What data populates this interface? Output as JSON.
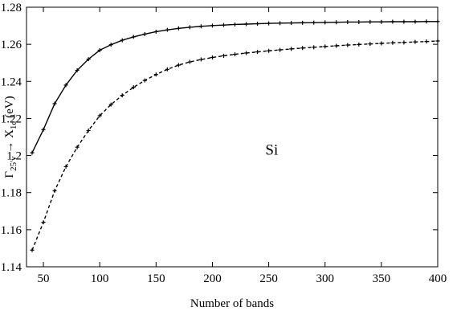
{
  "chart_data": {
    "type": "line",
    "xlabel": "Number of bands",
    "ylabel_main": "Γ",
    "ylabel_sub1": "25'v",
    "ylabel_arrow": " → X",
    "ylabel_sub2": "1c",
    "ylabel_unit": " (eV)",
    "annotation": "Si",
    "xlim": [
      35,
      400
    ],
    "ylim": [
      1.14,
      1.28
    ],
    "xticks": [
      50,
      100,
      150,
      200,
      250,
      300,
      350,
      400
    ],
    "yticks": [
      1.14,
      1.16,
      1.18,
      1.2,
      1.22,
      1.24,
      1.26,
      1.28
    ],
    "ytick_labels": [
      "1.14",
      "1.16",
      "1.18",
      "1.2",
      "1.22",
      "1.24",
      "1.26",
      "1.28"
    ],
    "grid": false,
    "series": [
      {
        "style": "solid",
        "x": [
          40,
          50,
          60,
          70,
          80,
          90,
          100,
          110,
          120,
          130,
          140,
          150,
          160,
          170,
          180,
          190,
          200,
          210,
          220,
          230,
          240,
          250,
          260,
          270,
          280,
          290,
          300,
          310,
          320,
          330,
          340,
          350,
          360,
          370,
          380,
          390,
          400
        ],
        "y": [
          1.2015,
          1.214,
          1.228,
          1.238,
          1.246,
          1.252,
          1.2568,
          1.2598,
          1.2622,
          1.264,
          1.2655,
          1.2668,
          1.2678,
          1.2686,
          1.2692,
          1.2697,
          1.2701,
          1.2704,
          1.2707,
          1.2709,
          1.2711,
          1.2713,
          1.2714,
          1.2715,
          1.2716,
          1.2717,
          1.2718,
          1.2719,
          1.272,
          1.272,
          1.2721,
          1.2721,
          1.2722,
          1.2722,
          1.2722,
          1.2723,
          1.2723
        ]
      },
      {
        "style": "dashed",
        "x": [
          40,
          50,
          60,
          70,
          80,
          90,
          100,
          110,
          120,
          130,
          140,
          150,
          160,
          170,
          180,
          190,
          200,
          210,
          220,
          230,
          240,
          250,
          260,
          270,
          280,
          290,
          300,
          310,
          320,
          330,
          340,
          350,
          360,
          370,
          380,
          390,
          400
        ],
        "y": [
          1.149,
          1.164,
          1.181,
          1.194,
          1.2045,
          1.2135,
          1.2215,
          1.2275,
          1.2325,
          1.2368,
          1.2405,
          1.2437,
          1.2465,
          1.2488,
          1.2505,
          1.2518,
          1.2529,
          1.2538,
          1.2546,
          1.2553,
          1.2559,
          1.2565,
          1.257,
          1.2575,
          1.258,
          1.2584,
          1.2588,
          1.2592,
          1.2596,
          1.2599,
          1.2602,
          1.2605,
          1.2608,
          1.261,
          1.2613,
          1.2615,
          1.2618
        ]
      }
    ]
  }
}
